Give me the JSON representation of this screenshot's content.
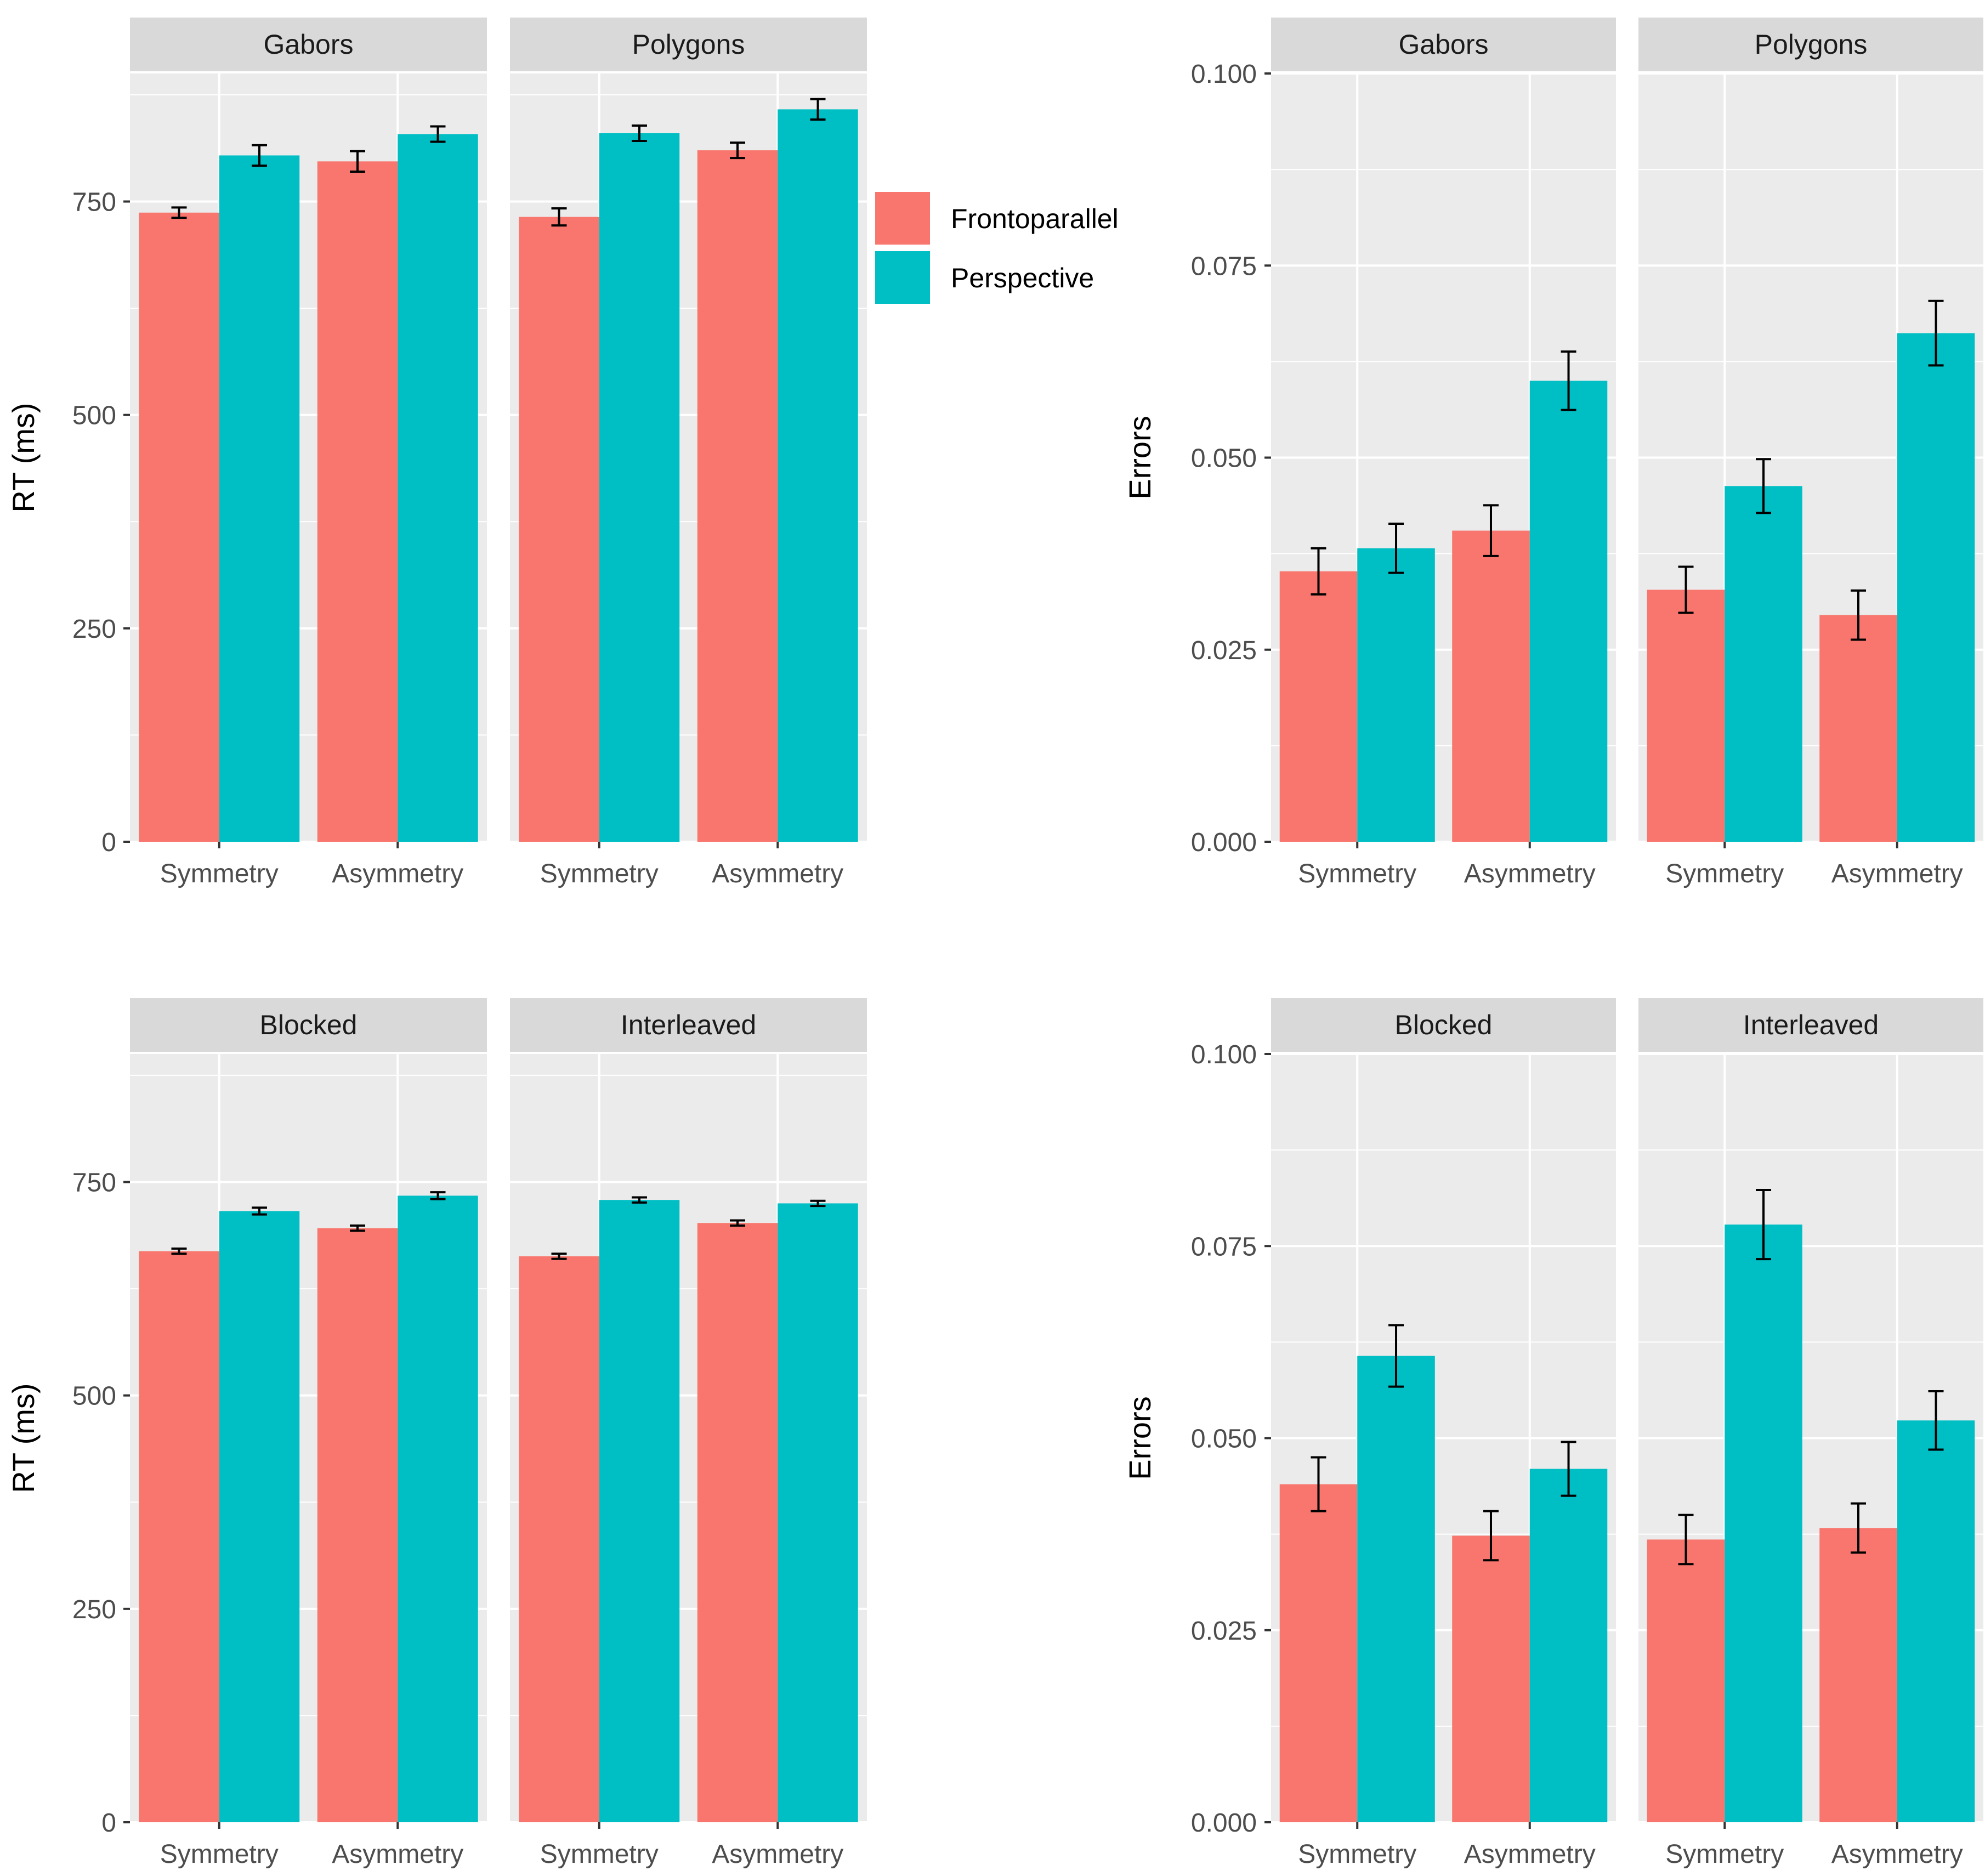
{
  "colors": {
    "panel_bg": "#EBEBEB",
    "strip_bg": "#D9D9D9",
    "grid": "#FFFFFF",
    "tick": "#333333",
    "error_bar": "#000000",
    "series": {
      "Frontoparallel": "#F8766D",
      "Perspective": "#00BFC4"
    }
  },
  "legend": {
    "entries": [
      "Frontoparallel",
      "Perspective"
    ]
  },
  "chart_data": [
    {
      "type": "bar",
      "ylabel": "RT (ms)",
      "ylim": [
        0,
        900
      ],
      "y_ticks": [
        0,
        250,
        500,
        750
      ],
      "y_tick_labels": [
        "0",
        "250",
        "500",
        "750"
      ],
      "categories": [
        "Symmetry",
        "Asymmetry"
      ],
      "legend": "right",
      "facets": [
        {
          "strip": "Gabors",
          "series": [
            {
              "name": "Frontoparallel",
              "values": [
                737,
                797
              ],
              "errors": [
                6,
                12
              ]
            },
            {
              "name": "Perspective",
              "values": [
                804,
                829
              ],
              "errors": [
                12,
                9
              ]
            }
          ]
        },
        {
          "strip": "Polygons",
          "series": [
            {
              "name": "Frontoparallel",
              "values": [
                732,
                810
              ],
              "errors": [
                10,
                9
              ]
            },
            {
              "name": "Perspective",
              "values": [
                830,
                858
              ],
              "errors": [
                9,
                12
              ]
            }
          ]
        }
      ]
    },
    {
      "type": "bar",
      "ylabel": "Errors",
      "ylim": [
        0,
        0.1
      ],
      "y_ticks": [
        0,
        0.025,
        0.05,
        0.075,
        0.1
      ],
      "y_tick_labels": [
        "0.000",
        "0.025",
        "0.050",
        "0.075",
        "0.100"
      ],
      "categories": [
        "Symmetry",
        "Asymmetry"
      ],
      "facets": [
        {
          "strip": "Gabors",
          "series": [
            {
              "name": "Frontoparallel",
              "values": [
                0.0352,
                0.0405
              ],
              "errors": [
                0.003,
                0.0033
              ]
            },
            {
              "name": "Perspective",
              "values": [
                0.0382,
                0.06
              ],
              "errors": [
                0.0032,
                0.0038
              ]
            }
          ]
        },
        {
          "strip": "Polygons",
          "series": [
            {
              "name": "Frontoparallel",
              "values": [
                0.0328,
                0.0295
              ],
              "errors": [
                0.003,
                0.0032
              ]
            },
            {
              "name": "Perspective",
              "values": [
                0.0463,
                0.0662
              ],
              "errors": [
                0.0035,
                0.0042
              ]
            }
          ]
        }
      ]
    },
    {
      "type": "bar",
      "ylabel": "RT (ms)",
      "ylim": [
        0,
        900
      ],
      "y_ticks": [
        0,
        250,
        500,
        750
      ],
      "y_tick_labels": [
        "0",
        "250",
        "500",
        "750"
      ],
      "categories": [
        "Symmetry",
        "Asymmetry"
      ],
      "facets": [
        {
          "strip": "Blocked",
          "series": [
            {
              "name": "Frontoparallel",
              "values": [
                669,
                696
              ],
              "errors": [
                3,
                3
              ]
            },
            {
              "name": "Perspective",
              "values": [
                716,
                734
              ],
              "errors": [
                4,
                4
              ]
            }
          ]
        },
        {
          "strip": "Interleaved",
          "series": [
            {
              "name": "Frontoparallel",
              "values": [
                663,
                702
              ],
              "errors": [
                3,
                3
              ]
            },
            {
              "name": "Perspective",
              "values": [
                729,
                725
              ],
              "errors": [
                3,
                3
              ]
            }
          ]
        }
      ]
    },
    {
      "type": "bar",
      "ylabel": "Errors",
      "ylim": [
        0,
        0.1
      ],
      "y_ticks": [
        0,
        0.025,
        0.05,
        0.075,
        0.1
      ],
      "y_tick_labels": [
        "0.000",
        "0.025",
        "0.050",
        "0.075",
        "0.100"
      ],
      "categories": [
        "Symmetry",
        "Asymmetry"
      ],
      "facets": [
        {
          "strip": "Blocked",
          "series": [
            {
              "name": "Frontoparallel",
              "values": [
                0.044,
                0.0373
              ],
              "errors": [
                0.0035,
                0.0032
              ]
            },
            {
              "name": "Perspective",
              "values": [
                0.0607,
                0.046
              ],
              "errors": [
                0.004,
                0.0035
              ]
            }
          ]
        },
        {
          "strip": "Interleaved",
          "series": [
            {
              "name": "Frontoparallel",
              "values": [
                0.0368,
                0.0383
              ],
              "errors": [
                0.0032,
                0.0032
              ]
            },
            {
              "name": "Perspective",
              "values": [
                0.0778,
                0.0523
              ],
              "errors": [
                0.0045,
                0.0038
              ]
            }
          ]
        }
      ]
    }
  ]
}
